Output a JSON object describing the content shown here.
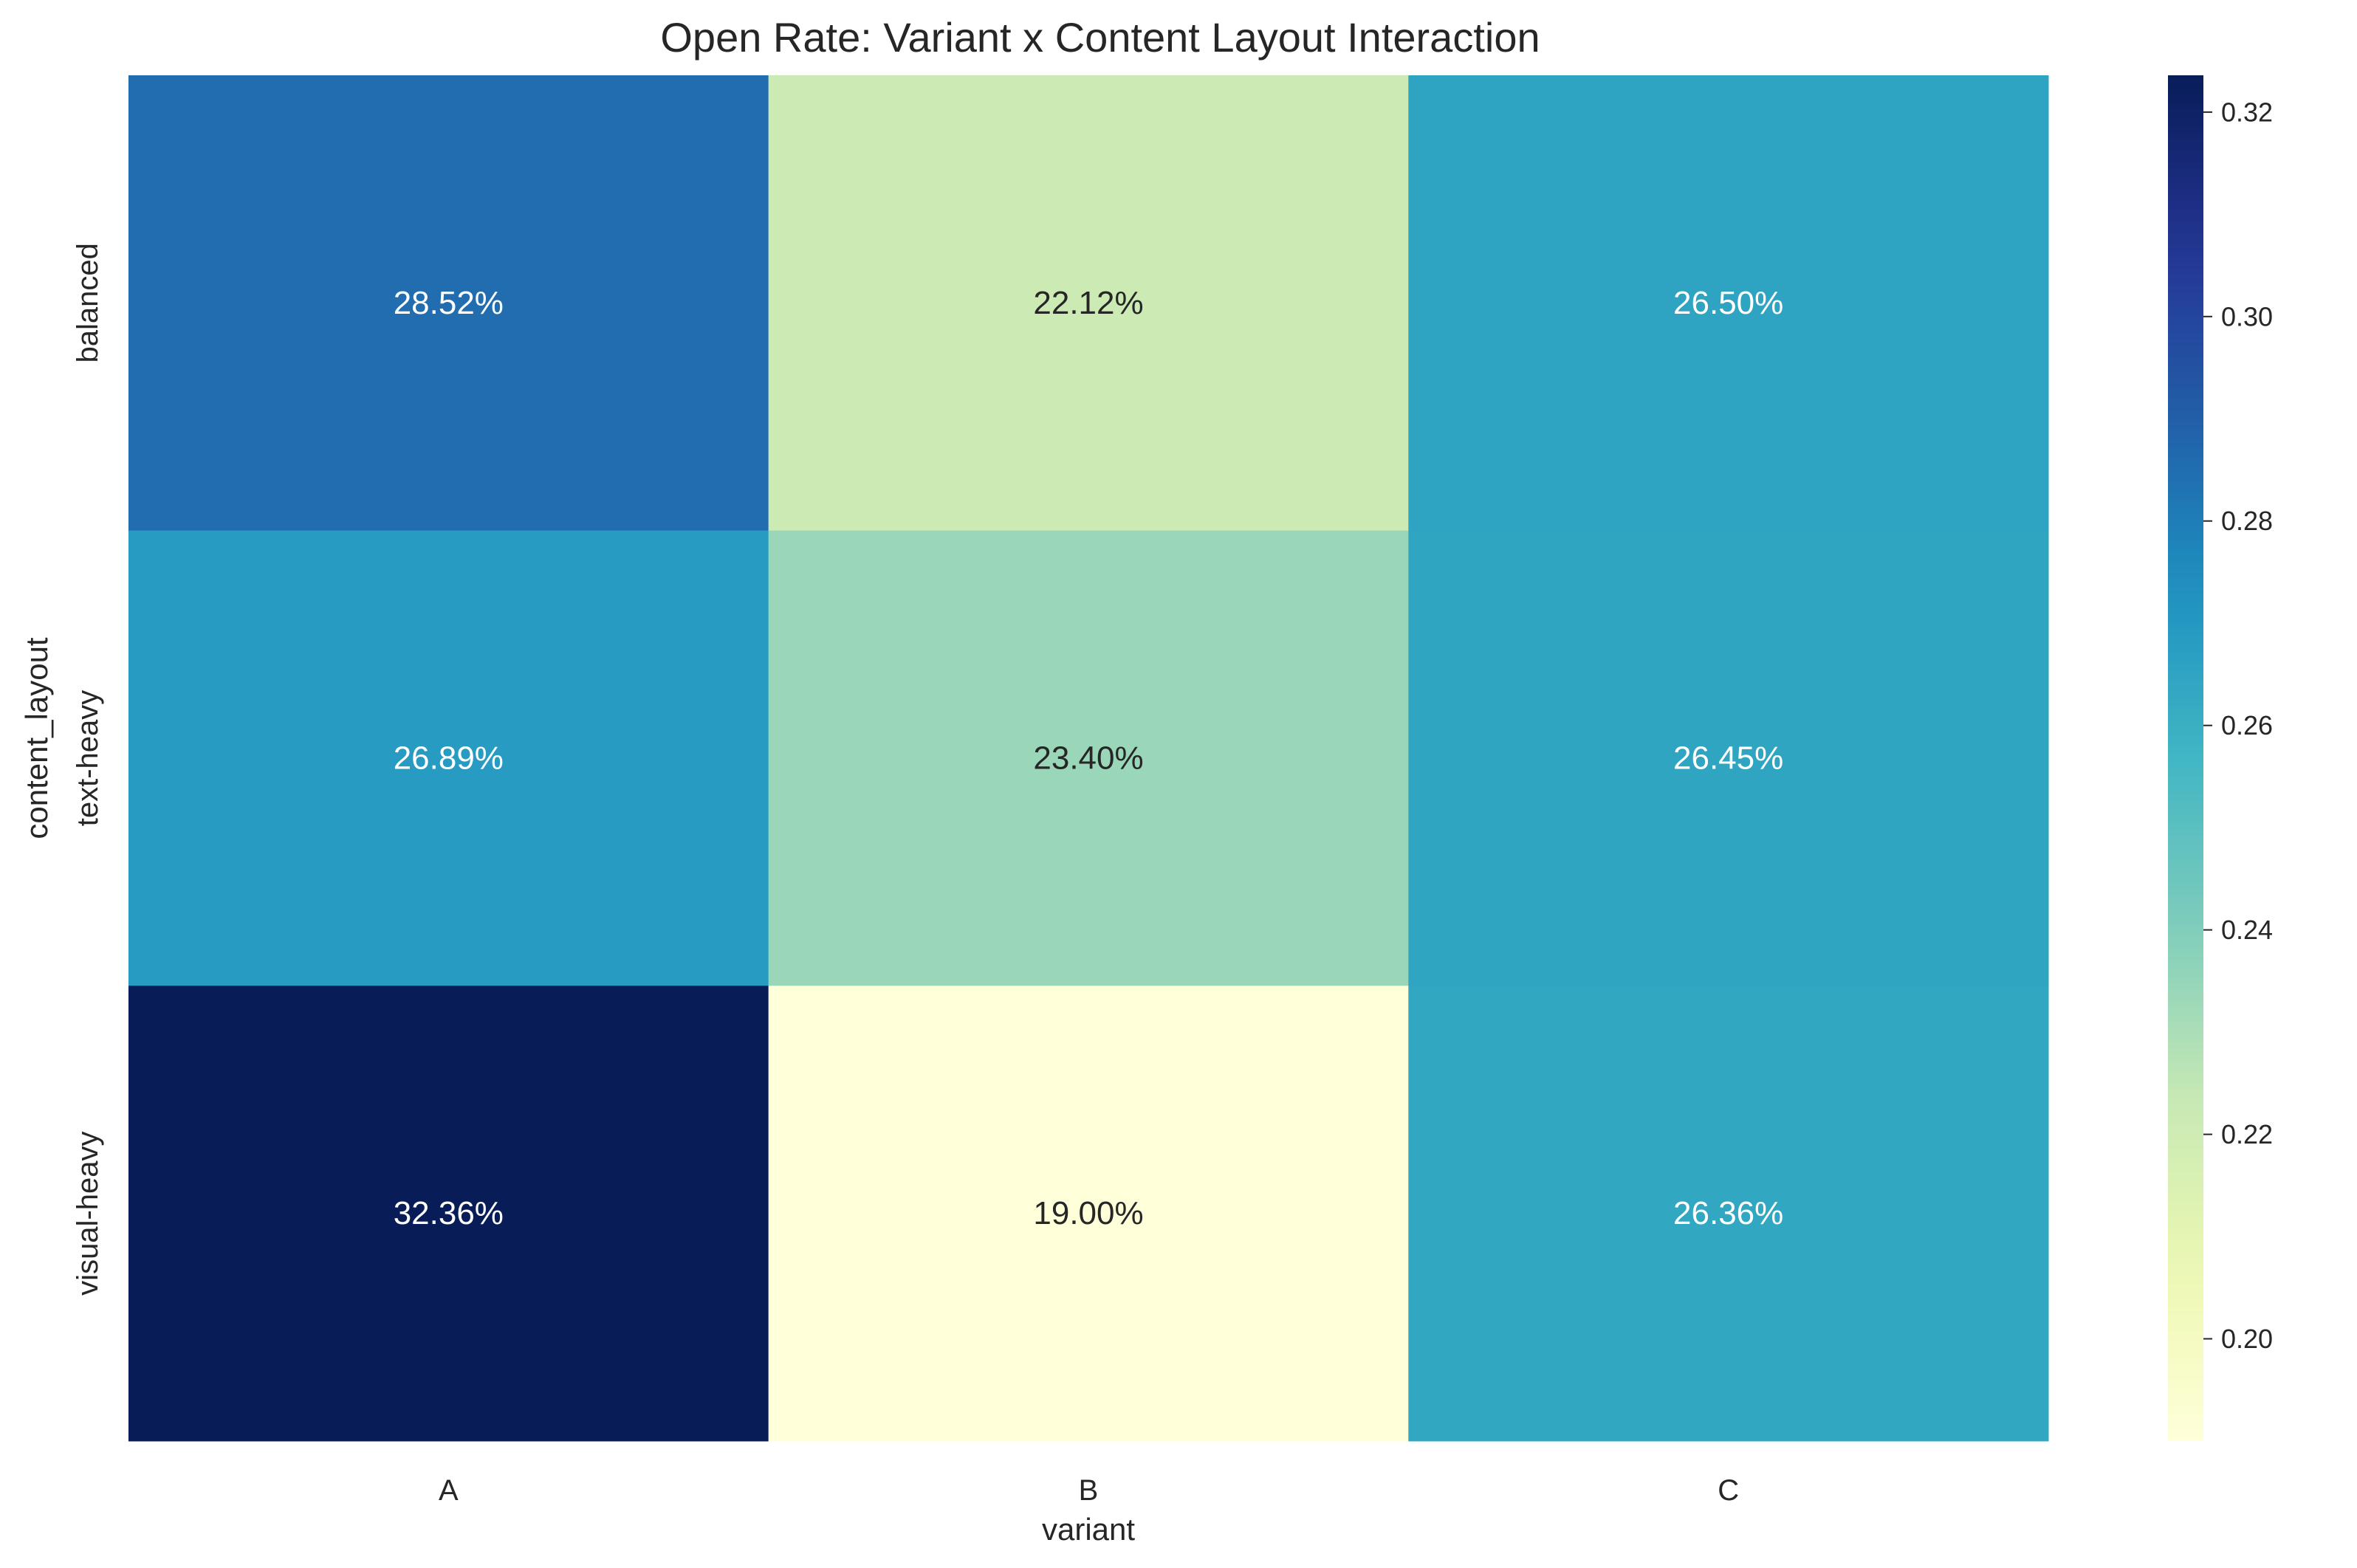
{
  "chart_data": {
    "type": "heatmap",
    "title": "Open Rate: Variant x Content Layout Interaction",
    "xlabel": "variant",
    "ylabel": "content_layout",
    "x_categories": [
      "A",
      "B",
      "C"
    ],
    "y_categories": [
      "balanced",
      "text-heavy",
      "visual-heavy"
    ],
    "values": [
      [
        0.2852,
        0.2212,
        0.265
      ],
      [
        0.2689,
        0.234,
        0.2645
      ],
      [
        0.3236,
        0.19,
        0.2636
      ]
    ],
    "cell_labels": [
      [
        "28.52%",
        "22.12%",
        "26.50%"
      ],
      [
        "26.89%",
        "23.40%",
        "26.45%"
      ],
      [
        "32.36%",
        "19.00%",
        "26.36%"
      ]
    ],
    "colormap": "YlGnBu",
    "color_range": [
      0.19,
      0.3236
    ],
    "colorbar_ticks": [
      "0.20",
      "0.22",
      "0.24",
      "0.26",
      "0.28",
      "0.30",
      "0.32"
    ],
    "colorbar_tick_values": [
      0.2,
      0.22,
      0.24,
      0.26,
      0.28,
      0.3,
      0.32
    ],
    "grid": false
  }
}
